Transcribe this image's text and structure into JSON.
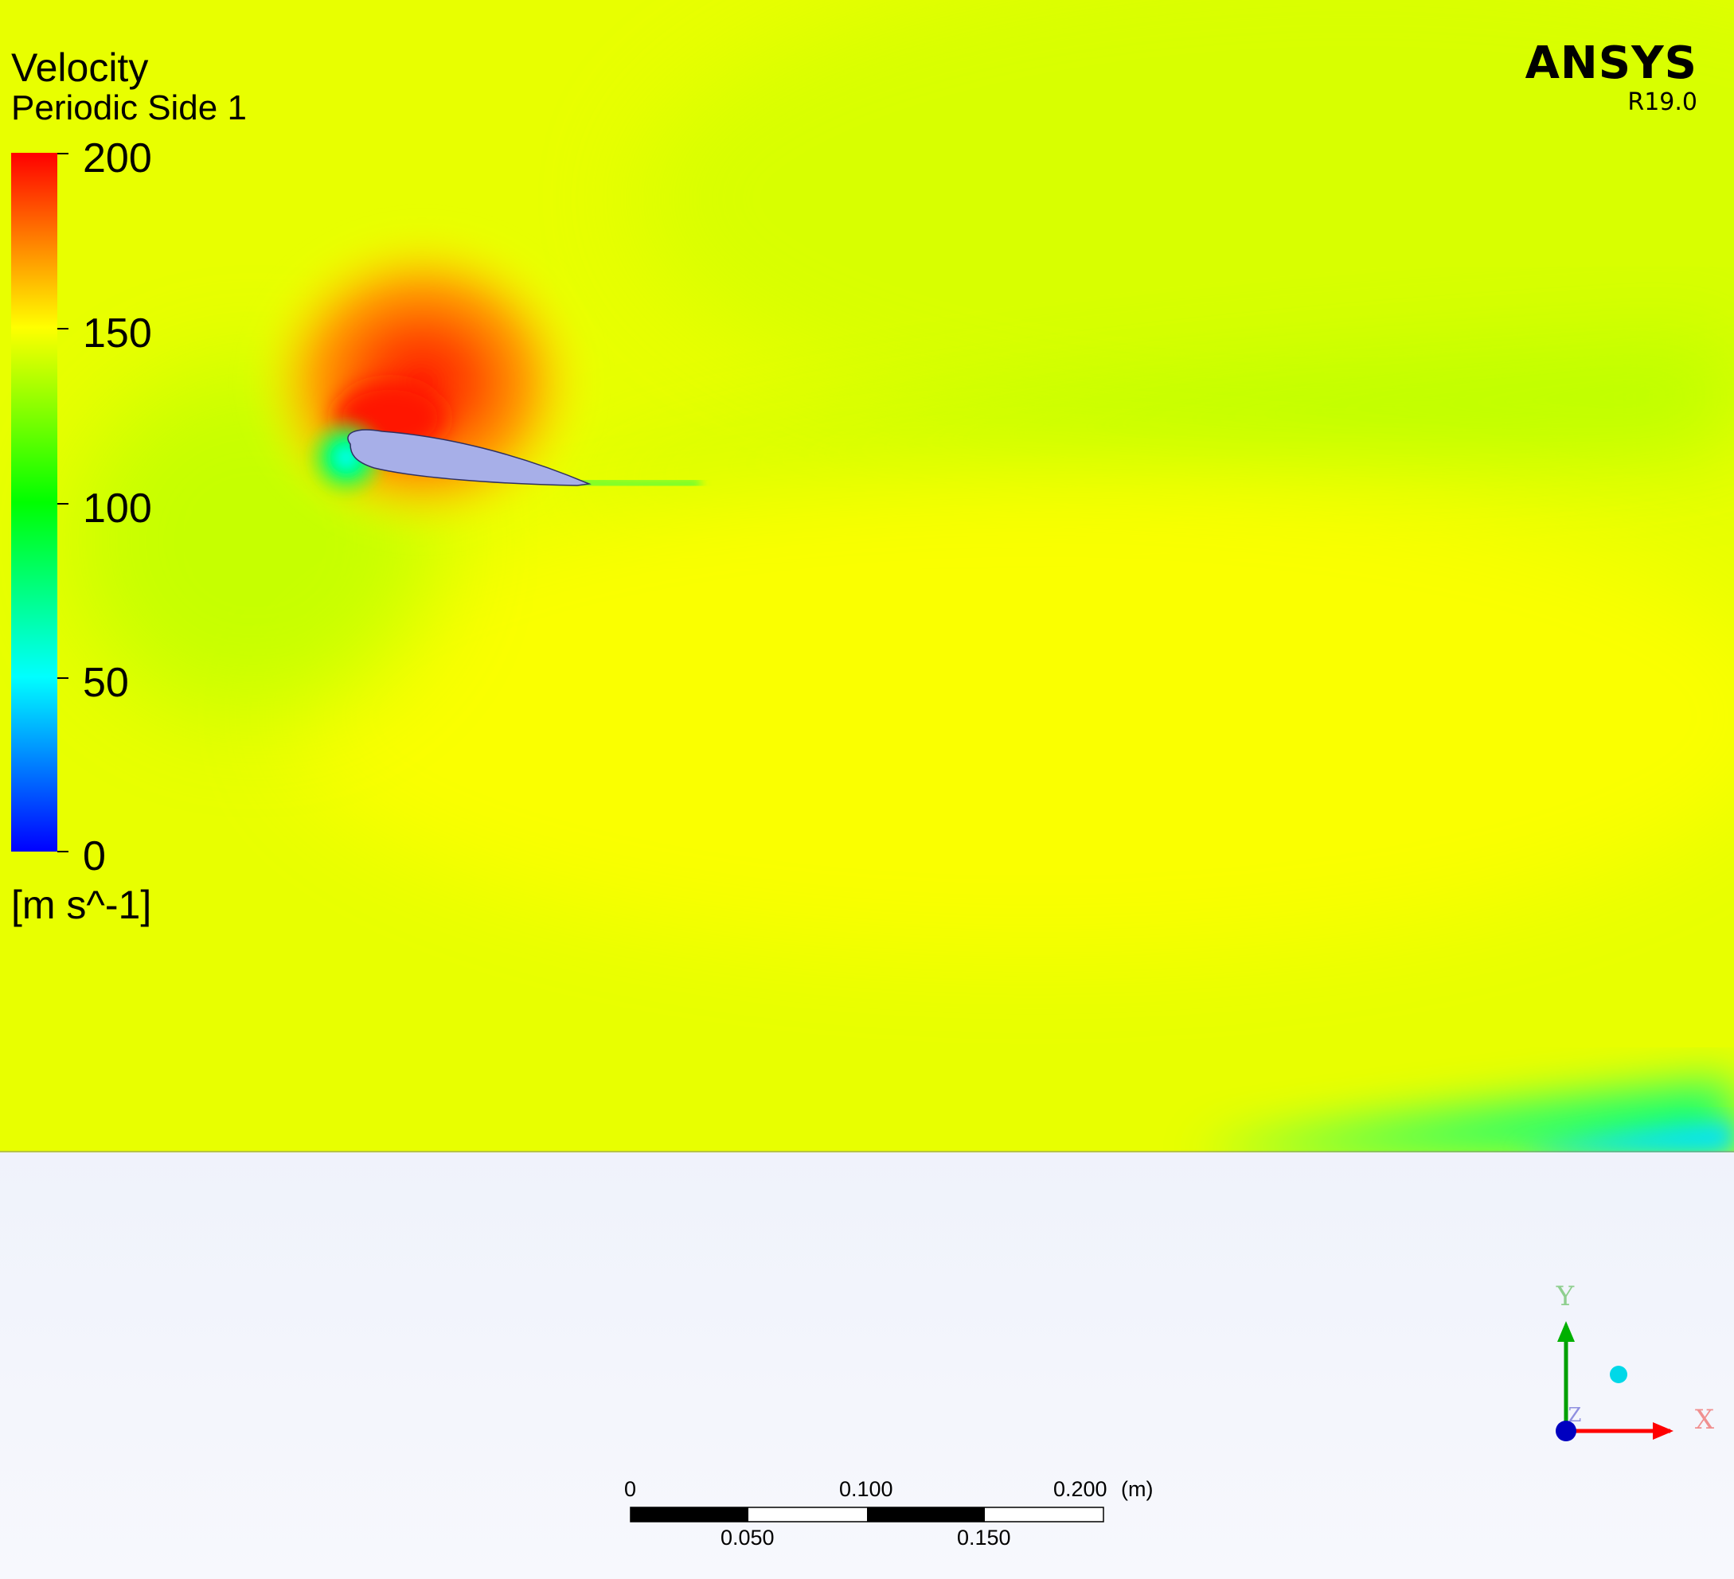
{
  "legend": {
    "title": "Velocity",
    "subtitle": "Periodic Side 1",
    "ticks": [
      "200",
      "150",
      "100",
      "50",
      "0"
    ],
    "units": "[m s^-1]",
    "colormap": [
      "#ff0000",
      "#ffff00",
      "#00ff00",
      "#00ffff",
      "#0000ff"
    ]
  },
  "brand": {
    "name": "ANSYS",
    "version": "R19.0"
  },
  "scale": {
    "top_labels": [
      "0",
      "0.100",
      "0.200"
    ],
    "bottom_labels": [
      "0.050",
      "0.150"
    ],
    "units": "(m)"
  },
  "triad": {
    "x_label": "X",
    "y_label": "Y",
    "z_label": "Z",
    "x_color": "#ff0000",
    "y_color": "#00a000",
    "z_color": "#0000c0"
  },
  "colors": {
    "background_top": "#dbe3f5",
    "background_bottom": "#f7f8fd",
    "airfoil_fill": "#a7afe8"
  }
}
